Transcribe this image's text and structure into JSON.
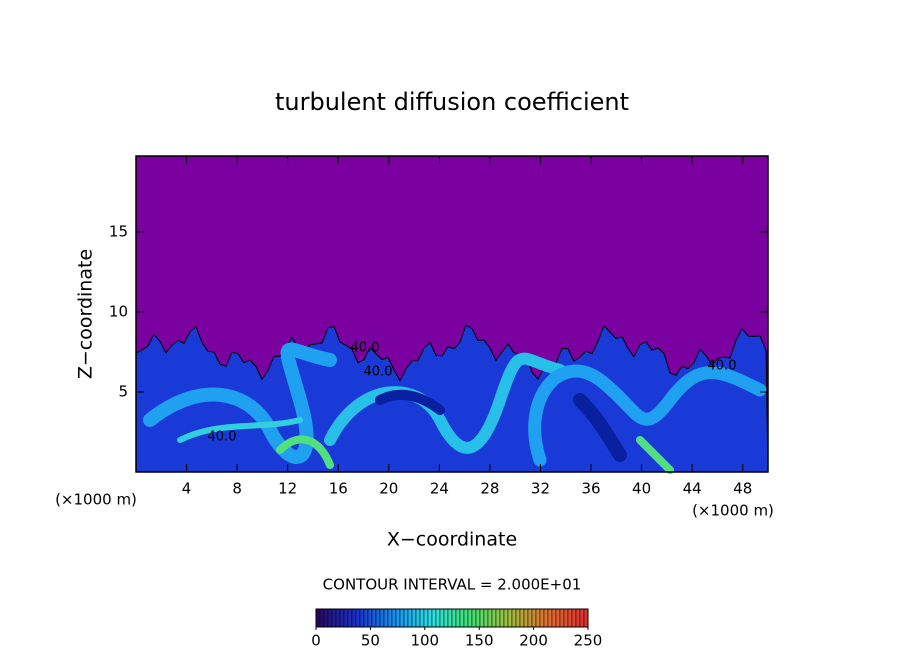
{
  "chart_data": {
    "type": "contour",
    "title": "turbulent diffusion coefficient",
    "x_label": "X−coordinate",
    "y_label": "Z−coordinate",
    "x_unit_left": "(×1000 m)",
    "x_unit_right": "(×1000 m)",
    "contour_interval": "CONTOUR INTERVAL = 2.000E+01",
    "xlim": [
      0,
      50
    ],
    "xticks": [
      4,
      8,
      12,
      16,
      20,
      24,
      28,
      32,
      36,
      40,
      44,
      48
    ],
    "ylim": [
      0,
      19.75
    ],
    "yticks": [
      5,
      10,
      15
    ],
    "background_color": "#7b00a0",
    "annotations": [
      "40.0",
      "40.0",
      "40.0",
      "40.0"
    ],
    "colorbar": {
      "lim": [
        0,
        250
      ],
      "ticks": [
        0,
        50,
        100,
        150,
        200,
        250
      ],
      "colors": [
        "#2a0a60",
        "#1a30d0",
        "#1890f0",
        "#30e0e0",
        "#40e070",
        "#a0c040",
        "#e07030",
        "#e03030"
      ]
    }
  }
}
